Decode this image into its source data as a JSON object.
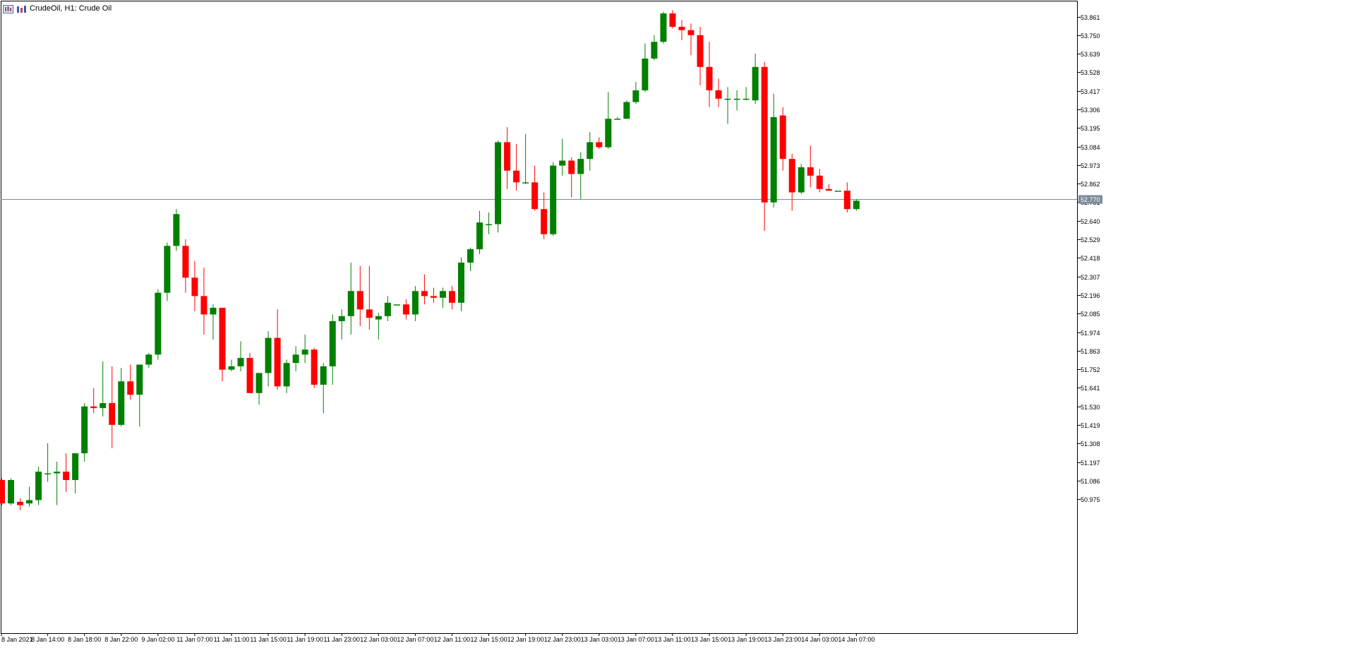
{
  "header": {
    "symbol_label": "CrudeOil, H1:  Crude Oil"
  },
  "colors": {
    "bull": "#008000",
    "bear": "#ff0000",
    "grid": "#000000",
    "price_line": "#7a8a99",
    "price_tag_bg": "#7a8a99",
    "price_tag_fg": "#ffffff"
  },
  "chart_data": {
    "type": "candlestick",
    "timeframe": "H1",
    "symbol": "CrudeOil",
    "ylim": [
      50.92,
      53.9
    ],
    "y_ticks": [
      "53.861",
      "53.750",
      "53.639",
      "53.528",
      "53.417",
      "53.306",
      "53.195",
      "53.084",
      "52.973",
      "52.862",
      "52.751",
      "52.640",
      "52.529",
      "52.418",
      "52.307",
      "52.196",
      "52.085",
      "51.974",
      "51.863",
      "51.752",
      "51.641",
      "51.530",
      "51.419",
      "51.308",
      "51.197",
      "51.086",
      "50.975"
    ],
    "x_labels": [
      "8 Jan 2021",
      "8 Jan 14:00",
      "8 Jan 18:00",
      "8 Jan 22:00",
      "9 Jan 02:00",
      "11 Jan 07:00",
      "11 Jan 11:00",
      "11 Jan 15:00",
      "11 Jan 19:00",
      "11 Jan 23:00",
      "12 Jan 03:00",
      "12 Jan 07:00",
      "12 Jan 11:00",
      "12 Jan 15:00",
      "12 Jan 19:00",
      "12 Jan 23:00",
      "13 Jan 03:00",
      "13 Jan 07:00",
      "13 Jan 11:00",
      "13 Jan 15:00",
      "13 Jan 19:00",
      "13 Jan 23:00",
      "14 Jan 03:00",
      "14 Jan 07:00"
    ],
    "current_price": "52.770",
    "candles": [
      {
        "o": 51.09,
        "h": 51.1,
        "l": 50.94,
        "c": 50.95
      },
      {
        "o": 50.95,
        "h": 51.1,
        "l": 50.94,
        "c": 51.09
      },
      {
        "o": 50.96,
        "h": 50.98,
        "l": 50.91,
        "c": 50.94
      },
      {
        "o": 50.95,
        "h": 51.05,
        "l": 50.93,
        "c": 50.97
      },
      {
        "o": 50.97,
        "h": 51.17,
        "l": 50.94,
        "c": 51.14
      },
      {
        "o": 51.13,
        "h": 51.31,
        "l": 51.08,
        "c": 51.13
      },
      {
        "o": 51.13,
        "h": 51.2,
        "l": 50.94,
        "c": 51.14
      },
      {
        "o": 51.14,
        "h": 51.25,
        "l": 51.02,
        "c": 51.09
      },
      {
        "o": 51.09,
        "h": 51.24,
        "l": 51.01,
        "c": 51.25
      },
      {
        "o": 51.25,
        "h": 51.55,
        "l": 51.2,
        "c": 51.53
      },
      {
        "o": 51.53,
        "h": 51.64,
        "l": 51.49,
        "c": 51.52
      },
      {
        "o": 51.52,
        "h": 51.8,
        "l": 51.47,
        "c": 51.55
      },
      {
        "o": 51.55,
        "h": 51.77,
        "l": 51.28,
        "c": 51.42
      },
      {
        "o": 51.42,
        "h": 51.76,
        "l": 51.41,
        "c": 51.68
      },
      {
        "o": 51.68,
        "h": 51.78,
        "l": 51.57,
        "c": 51.6
      },
      {
        "o": 51.6,
        "h": 51.78,
        "l": 51.41,
        "c": 51.78
      },
      {
        "o": 51.78,
        "h": 51.85,
        "l": 51.76,
        "c": 51.84
      },
      {
        "o": 51.84,
        "h": 52.23,
        "l": 51.81,
        "c": 52.21
      },
      {
        "o": 52.21,
        "h": 52.51,
        "l": 52.16,
        "c": 52.49
      },
      {
        "o": 52.49,
        "h": 52.71,
        "l": 52.46,
        "c": 52.68
      },
      {
        "o": 52.49,
        "h": 52.53,
        "l": 52.21,
        "c": 52.3
      },
      {
        "o": 52.3,
        "h": 52.4,
        "l": 52.1,
        "c": 52.19
      },
      {
        "o": 52.19,
        "h": 52.36,
        "l": 51.96,
        "c": 52.08
      },
      {
        "o": 52.08,
        "h": 52.14,
        "l": 51.93,
        "c": 52.12
      },
      {
        "o": 52.12,
        "h": 52.12,
        "l": 51.68,
        "c": 51.75
      },
      {
        "o": 51.75,
        "h": 51.81,
        "l": 51.74,
        "c": 51.77
      },
      {
        "o": 51.77,
        "h": 51.92,
        "l": 51.74,
        "c": 51.82
      },
      {
        "o": 51.82,
        "h": 51.85,
        "l": 51.61,
        "c": 51.61
      },
      {
        "o": 51.61,
        "h": 51.73,
        "l": 51.54,
        "c": 51.73
      },
      {
        "o": 51.73,
        "h": 51.98,
        "l": 51.65,
        "c": 51.94
      },
      {
        "o": 51.94,
        "h": 52.11,
        "l": 51.63,
        "c": 51.65
      },
      {
        "o": 51.65,
        "h": 51.81,
        "l": 51.61,
        "c": 51.79
      },
      {
        "o": 51.79,
        "h": 51.89,
        "l": 51.74,
        "c": 51.84
      },
      {
        "o": 51.84,
        "h": 51.96,
        "l": 51.79,
        "c": 51.87
      },
      {
        "o": 51.87,
        "h": 51.88,
        "l": 51.64,
        "c": 51.66
      },
      {
        "o": 51.66,
        "h": 51.79,
        "l": 51.49,
        "c": 51.77
      },
      {
        "o": 51.77,
        "h": 52.08,
        "l": 51.66,
        "c": 52.04
      },
      {
        "o": 52.04,
        "h": 52.11,
        "l": 51.93,
        "c": 52.07
      },
      {
        "o": 52.07,
        "h": 52.39,
        "l": 51.96,
        "c": 52.22
      },
      {
        "o": 52.22,
        "h": 52.37,
        "l": 52.01,
        "c": 52.11
      },
      {
        "o": 52.11,
        "h": 52.37,
        "l": 51.99,
        "c": 52.06
      },
      {
        "o": 52.05,
        "h": 52.09,
        "l": 51.93,
        "c": 52.07
      },
      {
        "o": 52.07,
        "h": 52.19,
        "l": 52.04,
        "c": 52.15
      },
      {
        "o": 52.14,
        "h": 52.14,
        "l": 52.14,
        "c": 52.14
      },
      {
        "o": 52.14,
        "h": 52.17,
        "l": 52.05,
        "c": 52.08
      },
      {
        "o": 52.08,
        "h": 52.25,
        "l": 52.04,
        "c": 52.22
      },
      {
        "o": 52.22,
        "h": 52.32,
        "l": 52.14,
        "c": 52.19
      },
      {
        "o": 52.19,
        "h": 52.24,
        "l": 52.15,
        "c": 52.18
      },
      {
        "o": 52.18,
        "h": 52.24,
        "l": 52.12,
        "c": 52.22
      },
      {
        "o": 52.22,
        "h": 52.25,
        "l": 52.11,
        "c": 52.15
      },
      {
        "o": 52.15,
        "h": 52.42,
        "l": 52.1,
        "c": 52.39
      },
      {
        "o": 52.39,
        "h": 52.48,
        "l": 52.34,
        "c": 52.47
      },
      {
        "o": 52.47,
        "h": 52.7,
        "l": 52.44,
        "c": 52.63
      },
      {
        "o": 52.62,
        "h": 52.69,
        "l": 52.56,
        "c": 52.62
      },
      {
        "o": 52.62,
        "h": 53.12,
        "l": 52.57,
        "c": 53.11
      },
      {
        "o": 53.11,
        "h": 53.2,
        "l": 52.83,
        "c": 52.94
      },
      {
        "o": 52.94,
        "h": 53.1,
        "l": 52.82,
        "c": 52.87
      },
      {
        "o": 52.87,
        "h": 53.16,
        "l": 52.86,
        "c": 52.87
      },
      {
        "o": 52.87,
        "h": 52.97,
        "l": 52.7,
        "c": 52.71
      },
      {
        "o": 52.71,
        "h": 52.81,
        "l": 52.53,
        "c": 52.56
      },
      {
        "o": 52.56,
        "h": 52.99,
        "l": 52.55,
        "c": 52.97
      },
      {
        "o": 52.97,
        "h": 53.13,
        "l": 52.91,
        "c": 53.0
      },
      {
        "o": 53.0,
        "h": 53.02,
        "l": 52.78,
        "c": 52.92
      },
      {
        "o": 52.92,
        "h": 53.05,
        "l": 52.77,
        "c": 53.01
      },
      {
        "o": 53.01,
        "h": 53.17,
        "l": 52.94,
        "c": 53.11
      },
      {
        "o": 53.11,
        "h": 53.14,
        "l": 53.07,
        "c": 53.08
      },
      {
        "o": 53.08,
        "h": 53.41,
        "l": 53.07,
        "c": 53.25
      },
      {
        "o": 53.25,
        "h": 53.26,
        "l": 53.25,
        "c": 53.25
      },
      {
        "o": 53.25,
        "h": 53.36,
        "l": 53.25,
        "c": 53.35
      },
      {
        "o": 53.35,
        "h": 53.47,
        "l": 53.34,
        "c": 53.42
      },
      {
        "o": 53.42,
        "h": 53.7,
        "l": 53.41,
        "c": 53.61
      },
      {
        "o": 53.61,
        "h": 53.75,
        "l": 53.6,
        "c": 53.71
      },
      {
        "o": 53.71,
        "h": 53.89,
        "l": 53.7,
        "c": 53.88
      },
      {
        "o": 53.88,
        "h": 53.9,
        "l": 53.79,
        "c": 53.8
      },
      {
        "o": 53.8,
        "h": 53.84,
        "l": 53.72,
        "c": 53.78
      },
      {
        "o": 53.78,
        "h": 53.82,
        "l": 53.63,
        "c": 53.75
      },
      {
        "o": 53.75,
        "h": 53.8,
        "l": 53.45,
        "c": 53.56
      },
      {
        "o": 53.56,
        "h": 53.71,
        "l": 53.32,
        "c": 53.42
      },
      {
        "o": 53.42,
        "h": 53.49,
        "l": 53.32,
        "c": 53.37
      },
      {
        "o": 53.37,
        "h": 53.44,
        "l": 53.22,
        "c": 53.37
      },
      {
        "o": 53.37,
        "h": 53.42,
        "l": 53.3,
        "c": 53.37
      },
      {
        "o": 53.37,
        "h": 53.44,
        "l": 53.36,
        "c": 53.37
      },
      {
        "o": 53.36,
        "h": 53.64,
        "l": 53.34,
        "c": 53.56
      },
      {
        "o": 53.56,
        "h": 53.59,
        "l": 52.58,
        "c": 52.75
      },
      {
        "o": 52.75,
        "h": 53.4,
        "l": 52.72,
        "c": 53.26
      },
      {
        "o": 53.27,
        "h": 53.32,
        "l": 52.94,
        "c": 53.01
      },
      {
        "o": 53.01,
        "h": 53.04,
        "l": 52.7,
        "c": 52.81
      },
      {
        "o": 52.81,
        "h": 52.98,
        "l": 52.8,
        "c": 52.96
      },
      {
        "o": 52.96,
        "h": 53.09,
        "l": 52.84,
        "c": 52.91
      },
      {
        "o": 52.91,
        "h": 52.95,
        "l": 52.81,
        "c": 52.83
      },
      {
        "o": 52.83,
        "h": 52.86,
        "l": 52.82,
        "c": 52.82
      },
      {
        "o": 52.82,
        "h": 52.82,
        "l": 52.82,
        "c": 52.82
      },
      {
        "o": 52.82,
        "h": 52.87,
        "l": 52.69,
        "c": 52.71
      },
      {
        "o": 52.71,
        "h": 52.77,
        "l": 52.7,
        "c": 52.76
      }
    ]
  }
}
